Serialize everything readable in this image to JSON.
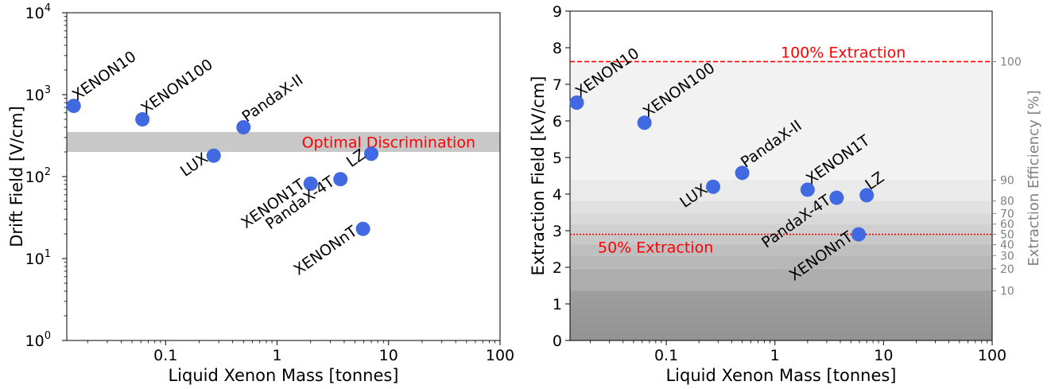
{
  "chart_data": [
    {
      "type": "scatter",
      "xlabel": "Liquid Xenon Mass [tonnes]",
      "ylabel": "Drift Field [V/cm]",
      "xscale": "log",
      "yscale": "log",
      "xlim": [
        0.013,
        100
      ],
      "ylim": [
        1,
        10000
      ],
      "x_ticks": [
        "0.1",
        "1",
        "10",
        "100"
      ],
      "y_tick_exponents": [
        "0",
        "1",
        "2",
        "3",
        "4"
      ],
      "y_tick_base": "10",
      "color": "#4169e1",
      "band": {
        "label": "Optimal Discrimination",
        "range": [
          200,
          350
        ],
        "color": "#c8c8c8",
        "label_color": "#ff0000"
      },
      "points": [
        {
          "name": "XENON10",
          "x": 0.015,
          "y": 730
        },
        {
          "name": "XENON100",
          "x": 0.062,
          "y": 500
        },
        {
          "name": "PandaX-II",
          "x": 0.5,
          "y": 400
        },
        {
          "name": "LUX",
          "x": 0.27,
          "y": 180
        },
        {
          "name": "XENON1T",
          "x": 2.0,
          "y": 82
        },
        {
          "name": "PandaX-4T",
          "x": 3.7,
          "y": 93
        },
        {
          "name": "LZ",
          "x": 7.0,
          "y": 190
        },
        {
          "name": "XENONnT",
          "x": 5.9,
          "y": 23
        }
      ]
    },
    {
      "type": "scatter",
      "xlabel": "Liquid Xenon Mass [tonnes]",
      "ylabel": "Extraction Field [kV/cm]",
      "y2label": "Extraction Efficiency [%]",
      "xscale": "log",
      "xlim": [
        0.013,
        100
      ],
      "ylim": [
        0,
        9
      ],
      "x_ticks": [
        "0.1",
        "1",
        "10",
        "100"
      ],
      "y_ticks": [
        "0",
        "1",
        "2",
        "3",
        "4",
        "5",
        "6",
        "7",
        "8",
        "9"
      ],
      "color": "#4169e1",
      "efficiency_ticks": [
        {
          "label": "100",
          "field": 7.62
        },
        {
          "label": "90",
          "field": 4.38
        },
        {
          "label": "80",
          "field": 3.81
        },
        {
          "label": "70",
          "field": 3.47
        },
        {
          "label": "60",
          "field": 3.18
        },
        {
          "label": "50",
          "field": 2.9
        },
        {
          "label": "40",
          "field": 2.62
        },
        {
          "label": "30",
          "field": 2.32
        },
        {
          "label": "20",
          "field": 1.96
        },
        {
          "label": "10",
          "field": 1.36
        }
      ],
      "lines": [
        {
          "label": "100% Extraction",
          "y": 7.62,
          "style": "dashed",
          "color": "#ff0000"
        },
        {
          "label": "50% Extraction",
          "y": 2.9,
          "style": "dotted",
          "color": "#ff0000"
        }
      ],
      "points": [
        {
          "name": "XENON10",
          "x": 0.015,
          "y": 6.5
        },
        {
          "name": "XENON100",
          "x": 0.063,
          "y": 5.95
        },
        {
          "name": "PandaX-II",
          "x": 0.5,
          "y": 4.58
        },
        {
          "name": "LUX",
          "x": 0.27,
          "y": 4.2
        },
        {
          "name": "XENON1T",
          "x": 2.0,
          "y": 4.12
        },
        {
          "name": "PandaX-4T",
          "x": 3.7,
          "y": 3.9
        },
        {
          "name": "LZ",
          "x": 7.0,
          "y": 3.97
        },
        {
          "name": "XENONnT",
          "x": 5.9,
          "y": 2.9
        }
      ]
    }
  ]
}
